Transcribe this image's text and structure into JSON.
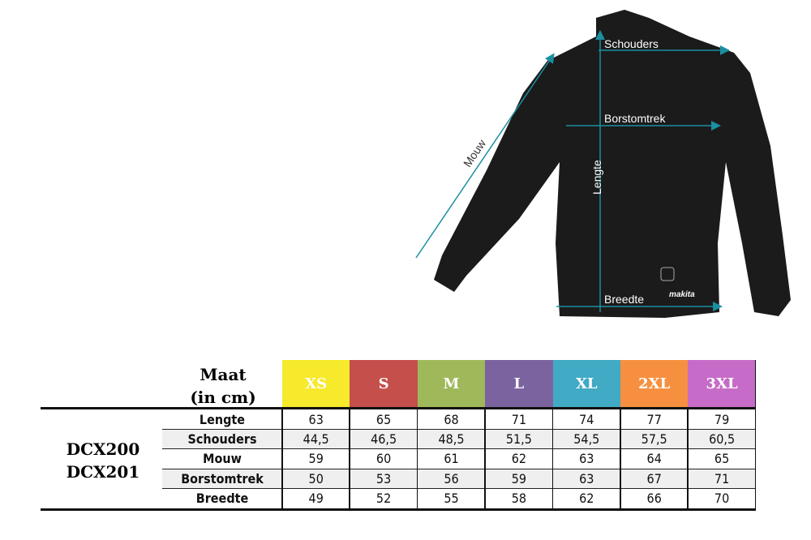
{
  "diagram": {
    "labels": {
      "schouders": "Schouders",
      "borstomtrek": "Borstomtrek",
      "lengte": "Lengte",
      "breedte": "Breedte",
      "mouw": "Mouw"
    },
    "arrow_color": "#1a8fa0",
    "brand": "makita"
  },
  "table": {
    "header_title": "Maat",
    "header_unit": "(in cm)",
    "models": [
      "DCX200",
      "DCX201"
    ],
    "sizes": [
      {
        "label": "XS",
        "color": "#f7e92c"
      },
      {
        "label": "S",
        "color": "#c54f4b"
      },
      {
        "label": "M",
        "color": "#9fb95a"
      },
      {
        "label": "L",
        "color": "#7b63a0"
      },
      {
        "label": "XL",
        "color": "#41aac4"
      },
      {
        "label": "2XL",
        "color": "#f69040"
      },
      {
        "label": "3XL",
        "color": "#c66cc8"
      }
    ],
    "rows": [
      {
        "label": "Lengte",
        "values": [
          "63",
          "65",
          "68",
          "71",
          "74",
          "77",
          "79"
        ]
      },
      {
        "label": "Schouders",
        "values": [
          "44,5",
          "46,5",
          "48,5",
          "51,5",
          "54,5",
          "57,5",
          "60,5"
        ]
      },
      {
        "label": "Mouw",
        "values": [
          "59",
          "60",
          "61",
          "62",
          "63",
          "64",
          "65"
        ]
      },
      {
        "label": "Borstomtrek",
        "values": [
          "50",
          "53",
          "56",
          "59",
          "63",
          "67",
          "71"
        ]
      },
      {
        "label": "Breedte",
        "values": [
          "49",
          "52",
          "55",
          "58",
          "62",
          "66",
          "70"
        ]
      }
    ]
  }
}
